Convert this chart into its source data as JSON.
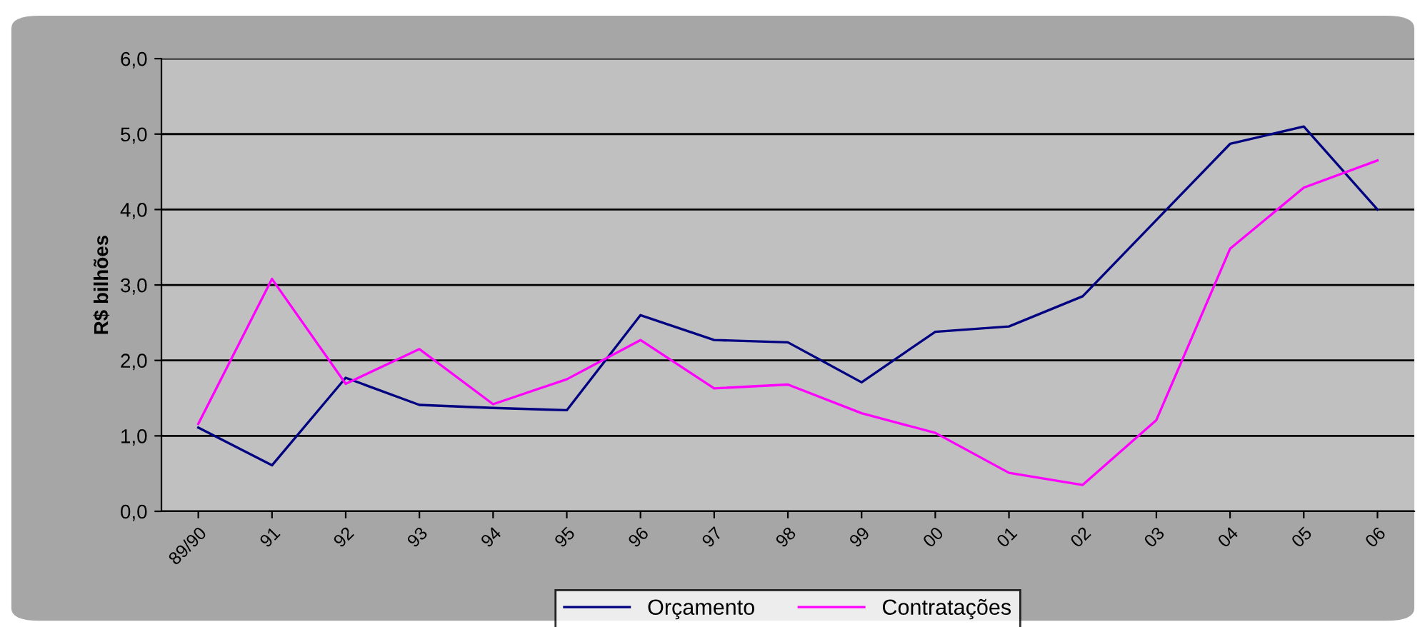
{
  "chart_data": {
    "type": "line",
    "ylabel": "R$ bilhões",
    "categories": [
      "89/90",
      "91",
      "92",
      "93",
      "94",
      "95",
      "96",
      "97",
      "98",
      "99",
      "00",
      "01",
      "02",
      "03",
      "04",
      "05",
      "06"
    ],
    "series": [
      {
        "name": "Orçamento",
        "color": "#000080",
        "values": [
          1.11,
          0.61,
          1.77,
          1.41,
          1.37,
          1.34,
          2.6,
          2.27,
          2.24,
          1.71,
          2.38,
          2.45,
          2.85,
          3.86,
          4.87,
          5.1,
          4.0
        ]
      },
      {
        "name": "Contratações",
        "color": "#ff00ff",
        "values": [
          1.16,
          3.08,
          1.69,
          2.15,
          1.42,
          1.75,
          2.27,
          1.63,
          1.68,
          1.3,
          1.04,
          0.51,
          0.35,
          1.21,
          3.48,
          4.29,
          4.65
        ]
      }
    ],
    "ylim": [
      0,
      6
    ],
    "yticks": [
      {
        "value": 0,
        "label": "0,0"
      },
      {
        "value": 1,
        "label": "1,0"
      },
      {
        "value": 2,
        "label": "2,0"
      },
      {
        "value": 3,
        "label": "3,0"
      },
      {
        "value": 4,
        "label": "4,0"
      },
      {
        "value": 5,
        "label": "5,0"
      },
      {
        "value": 6,
        "label": "6,0"
      }
    ],
    "grid": "y",
    "legend": "bottom",
    "marker": "none",
    "line_style": "solid"
  }
}
